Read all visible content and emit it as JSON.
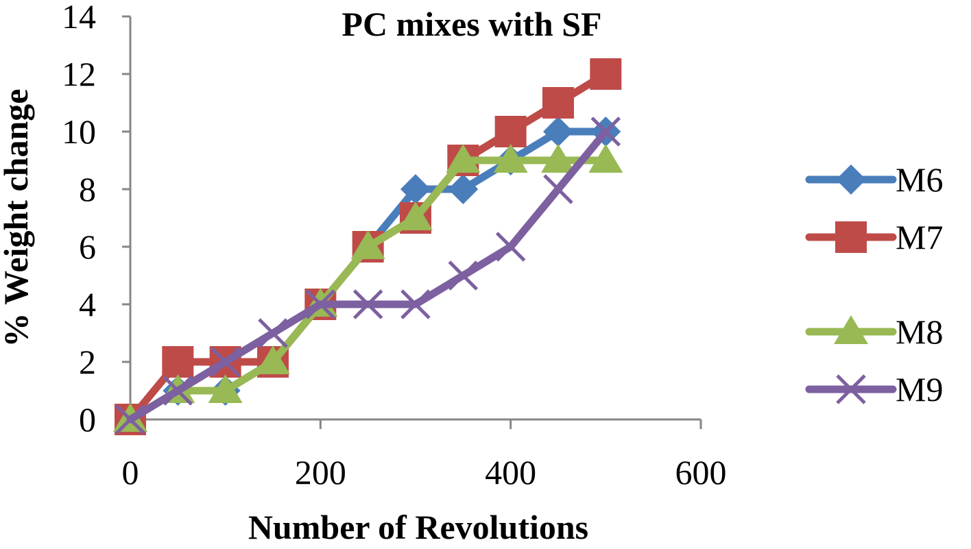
{
  "chart_data": {
    "type": "line",
    "title": "PC mixes with SF",
    "xlabel": "Number of Revolutions",
    "ylabel": "% Weight change",
    "xlim": [
      0,
      600
    ],
    "ylim": [
      0,
      14
    ],
    "x_ticks": [
      0,
      200,
      400,
      600
    ],
    "y_ticks": [
      0,
      2,
      4,
      6,
      8,
      10,
      12,
      14
    ],
    "grid": false,
    "legend_position": "right",
    "x": [
      0,
      50,
      100,
      150,
      200,
      250,
      300,
      350,
      400,
      450,
      500
    ],
    "series": [
      {
        "name": "M6",
        "color": "#4a7ebb",
        "marker": "diamond",
        "values": [
          0,
          1,
          1,
          2,
          4,
          6,
          8,
          8,
          9,
          10,
          10
        ]
      },
      {
        "name": "M7",
        "color": "#be4b48",
        "marker": "square",
        "values": [
          0,
          2,
          2,
          2,
          4,
          6,
          7,
          9,
          10,
          11,
          12
        ]
      },
      {
        "name": "M8",
        "color": "#98b954",
        "marker": "triangle",
        "values": [
          0,
          1,
          1,
          2,
          4,
          6,
          7,
          9,
          9,
          9,
          9
        ]
      },
      {
        "name": "M9",
        "color": "#7d60a0",
        "marker": "x",
        "values": [
          0,
          1,
          2,
          3,
          4,
          4,
          4,
          5,
          6,
          8,
          10
        ]
      }
    ]
  }
}
